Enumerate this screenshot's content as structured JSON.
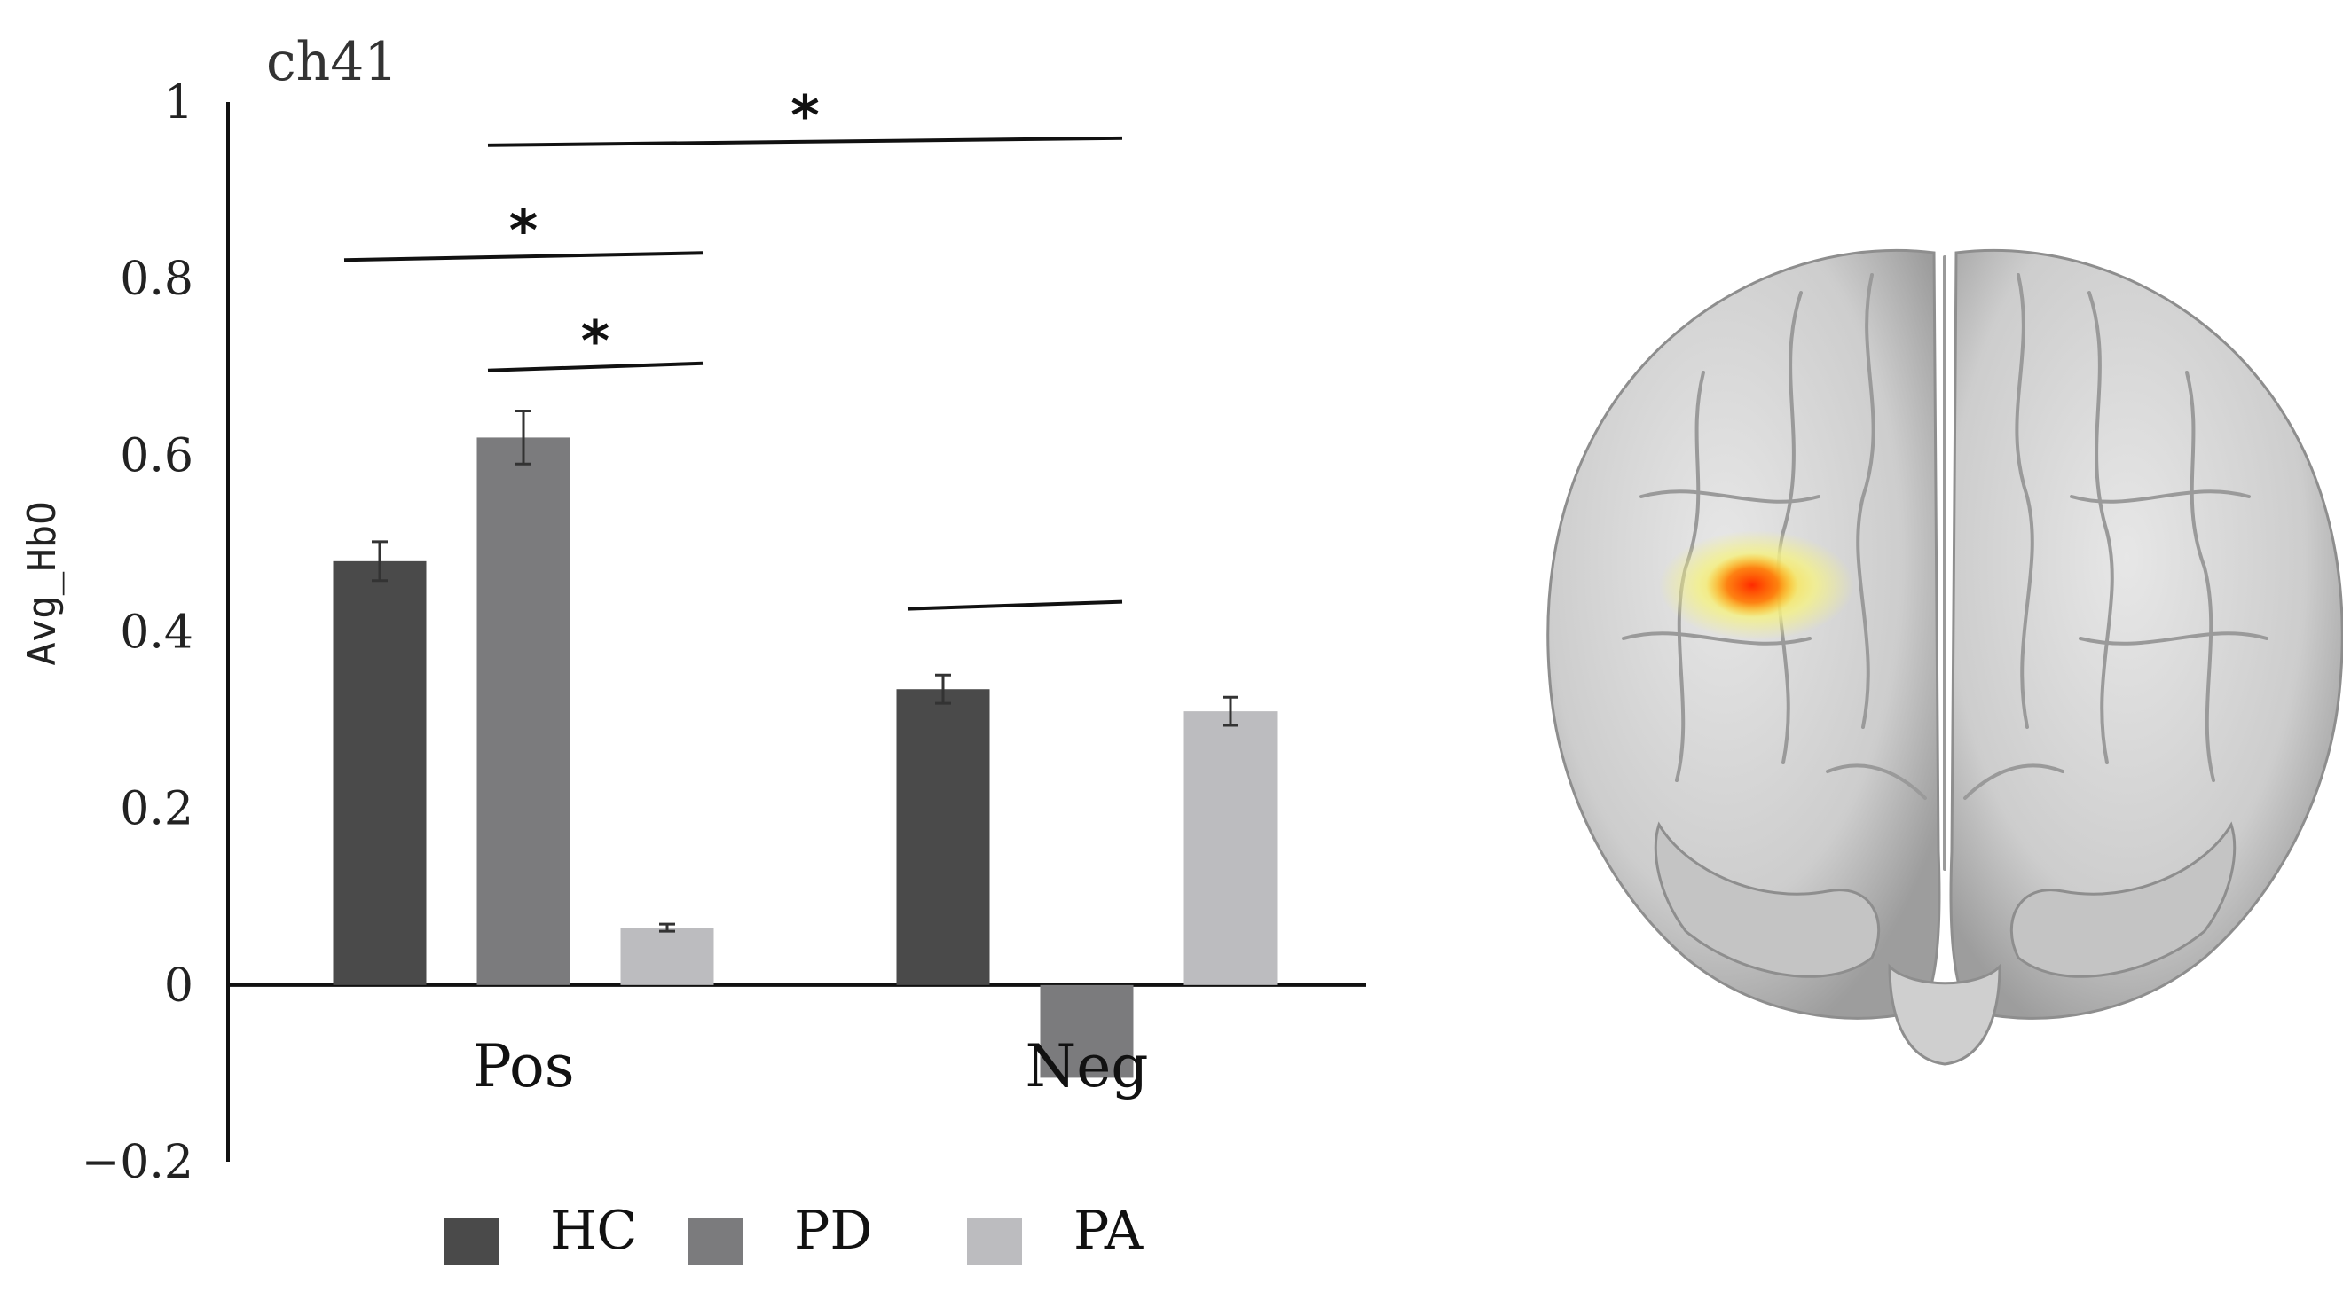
{
  "chart_data": {
    "type": "bar",
    "title": "ch41",
    "ylabel": "Avg_HbO",
    "xlabel": "",
    "categories": [
      "Pos",
      "Neg"
    ],
    "ylim": [
      -0.2,
      1
    ],
    "yticks": [
      1,
      0.8,
      0.6,
      0.4,
      0.2,
      0,
      -0.2
    ],
    "ytick_labels": [
      "1",
      "0.8",
      "0.6",
      "0.4",
      "0.2",
      "0",
      "−0.2"
    ],
    "series": [
      {
        "name": "HC",
        "color": "#4a4a4a",
        "values": [
          0.48,
          0.335
        ],
        "errors": [
          0.022,
          0.016
        ]
      },
      {
        "name": "PD",
        "color": "#7b7b7d",
        "values": [
          0.62,
          -0.105
        ],
        "errors": [
          0.03,
          0.0
        ]
      },
      {
        "name": "PA",
        "color": "#bcbcbf",
        "values": [
          0.065,
          0.31
        ],
        "errors": [
          0.004,
          0.016
        ]
      }
    ],
    "legend_position": "bottom",
    "grid": false,
    "significance_marks": [
      {
        "label": "*",
        "from": "Pos HC",
        "to": "Pos PA",
        "y": 0.825
      },
      {
        "label": "*",
        "from": "Pos PD",
        "to": "Pos PA",
        "y": 0.7
      },
      {
        "label": "*",
        "from": "Pos PD",
        "to": "Neg PD",
        "y": 0.955
      },
      {
        "label": "",
        "from": "Neg HC",
        "to": "Neg PD",
        "y": 0.43
      }
    ]
  },
  "brain_image": {
    "view": "frontal",
    "highlight_colors": [
      "#ff2a00",
      "#ffd21a",
      "#f3f08a"
    ]
  }
}
